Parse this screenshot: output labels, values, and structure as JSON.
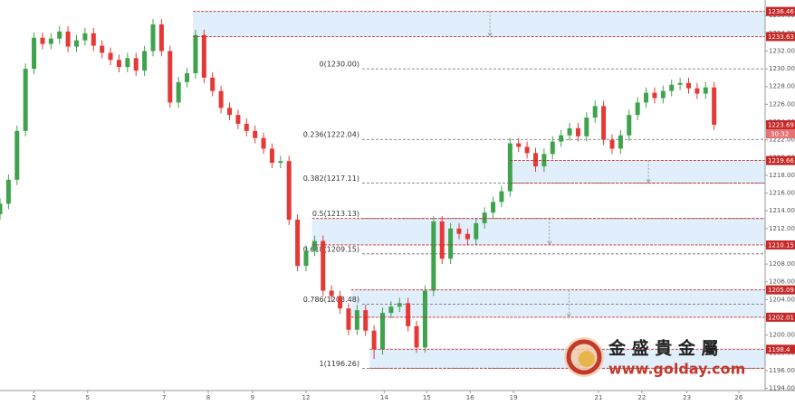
{
  "chart_data": {
    "type": "candlestick",
    "xlim": [
      0,
      90
    ],
    "ylim": [
      1193.75,
      1237.75
    ],
    "xticks": [
      {
        "value": 4.0,
        "label": "2"
      },
      {
        "value": 10.3,
        "label": "5"
      },
      {
        "value": 19.3,
        "label": "7"
      },
      {
        "value": 24.5,
        "label": "8"
      },
      {
        "value": 29.7,
        "label": "9"
      },
      {
        "value": 36.0,
        "label": "12"
      },
      {
        "value": 45.2,
        "label": "14"
      },
      {
        "value": 50.2,
        "label": "15"
      },
      {
        "value": 55.3,
        "label": "16"
      },
      {
        "value": 60.4,
        "label": "19"
      },
      {
        "value": 70.4,
        "label": "21"
      },
      {
        "value": 75.5,
        "label": "22"
      },
      {
        "value": 80.8,
        "label": "23"
      },
      {
        "value": 86.9,
        "label": "26"
      }
    ],
    "yticks": [
      {
        "value": 1194,
        "label": "1194.00"
      },
      {
        "value": 1196,
        "label": "1196.00"
      },
      {
        "value": 1198,
        "label": "1198.00"
      },
      {
        "value": 1200,
        "label": "1200.00"
      },
      {
        "value": 1202,
        "label": "1202.00"
      },
      {
        "value": 1204,
        "label": "1204.00"
      },
      {
        "value": 1206,
        "label": "1206.00"
      },
      {
        "value": 1208,
        "label": "1208.00"
      },
      {
        "value": 1210,
        "label": "1210.00"
      },
      {
        "value": 1212,
        "label": "1212.00"
      },
      {
        "value": 1214,
        "label": "1214.00"
      },
      {
        "value": 1216,
        "label": "1216.00"
      },
      {
        "value": 1218,
        "label": "1218.00"
      },
      {
        "value": 1220,
        "label": "1220.00"
      },
      {
        "value": 1222,
        "label": "1222.00"
      },
      {
        "value": 1224,
        "label": "1224.00"
      },
      {
        "value": 1226,
        "label": "1226.00"
      },
      {
        "value": 1228,
        "label": "1228.00"
      },
      {
        "value": 1230,
        "label": "1230.00"
      },
      {
        "value": 1232,
        "label": "1232.00"
      },
      {
        "value": 1234,
        "label": "1234.00"
      },
      {
        "value": 1236,
        "label": "1236.00"
      }
    ],
    "up_color": "#3fa34d",
    "down_color": "#e53935",
    "open": [
      1213.6,
      1214.8,
      1217.5,
      1223,
      1230,
      1233.5,
      1232.8,
      1233.4,
      1234.2,
      1232.5,
      1233.2,
      1234,
      1232.6,
      1231.8,
      1231,
      1230.2,
      1231.2,
      1229.8,
      1232,
      1235,
      1232,
      1226.2,
      1228.5,
      1229.5,
      1233.8,
      1229,
      1227.5,
      1225.6,
      1224.8,
      1223.8,
      1223,
      1222.2,
      1221,
      1219.4,
      1219.6,
      1213,
      1207.8,
      1209.5,
      1210.6,
      1205,
      1204.4,
      1203,
      1200.6,
      1202.8,
      1200.5,
      1198.4,
      1202.5,
      1203.2,
      1203.6,
      1201,
      1198.6,
      1205,
      1212.8,
      1208.6,
      1212,
      1211.4,
      1210.8,
      1212.6,
      1213.8,
      1215,
      1216.2,
      1221.6,
      1221.2,
      1220.5,
      1219,
      1220.4,
      1221.8,
      1222.5,
      1223.3,
      1222.4,
      1224.5,
      1225.8,
      1222,
      1221,
      1222.5,
      1224.8,
      1226.2,
      1227.3,
      1226.7,
      1227.5,
      1228.2,
      1228.4,
      1227.8,
      1227.2,
      1227.9
    ],
    "high": [
      1215.4,
      1218.1,
      1223.6,
      1230.6,
      1234.1,
      1234.1,
      1234.0,
      1234.8,
      1234.8,
      1233.8,
      1234.6,
      1234.6,
      1233.2,
      1232.4,
      1231.6,
      1231.8,
      1231.8,
      1232.6,
      1235.6,
      1235.6,
      1232.6,
      1229.1,
      1230.1,
      1234.4,
      1234.4,
      1229.6,
      1228.1,
      1226.2,
      1225.4,
      1224.4,
      1223.6,
      1222.8,
      1221.6,
      1220.2,
      1220.2,
      1213.6,
      1210.1,
      1211.2,
      1211.2,
      1205.6,
      1205.0,
      1203.6,
      1203.4,
      1203.4,
      1201.1,
      1203.1,
      1203.8,
      1204.2,
      1204.2,
      1201.6,
      1205.6,
      1213.4,
      1213.4,
      1212.6,
      1212.6,
      1212.0,
      1213.2,
      1214.4,
      1215.6,
      1216.8,
      1222.2,
      1222.2,
      1221.8,
      1221.1,
      1221.0,
      1222.4,
      1223.1,
      1223.9,
      1223.9,
      1225.1,
      1226.4,
      1226.4,
      1222.6,
      1223.1,
      1225.4,
      1226.8,
      1227.9,
      1227.9,
      1228.1,
      1228.8,
      1229.0,
      1229.0,
      1228.4,
      1228.5,
      1228.5
    ],
    "low": [
      1213.0,
      1214.2,
      1216.9,
      1222.4,
      1229.4,
      1232.2,
      1232.2,
      1232.8,
      1231.9,
      1231.9,
      1232.6,
      1232.0,
      1231.2,
      1230.4,
      1229.6,
      1229.6,
      1229.2,
      1229.2,
      1231.4,
      1231.4,
      1225.6,
      1225.6,
      1227.9,
      1228.9,
      1228.4,
      1226.9,
      1225.0,
      1224.2,
      1223.2,
      1222.4,
      1221.6,
      1220.4,
      1218.8,
      1218.8,
      1212.4,
      1207.2,
      1207.2,
      1208.9,
      1204.4,
      1203.8,
      1202.4,
      1200.0,
      1200.0,
      1199.9,
      1197.3,
      1197.8,
      1201.9,
      1202.6,
      1200.4,
      1198.0,
      1198.0,
      1204.4,
      1208.0,
      1208.0,
      1210.8,
      1210.2,
      1210.2,
      1212.0,
      1213.2,
      1214.4,
      1215.6,
      1220.6,
      1219.9,
      1218.4,
      1218.4,
      1219.8,
      1221.2,
      1221.9,
      1221.8,
      1221.8,
      1223.9,
      1221.4,
      1220.4,
      1220.4,
      1221.9,
      1224.2,
      1225.6,
      1226.1,
      1226.1,
      1226.9,
      1227.6,
      1227.2,
      1226.6,
      1226.6,
      1223.1
    ],
    "close": [
      1214.8,
      1217.5,
      1223,
      1230,
      1233.5,
      1232.8,
      1233.4,
      1234.2,
      1232.5,
      1233.2,
      1234,
      1232.6,
      1231.8,
      1231,
      1230.2,
      1231.2,
      1229.8,
      1232,
      1235,
      1232,
      1226.2,
      1228.5,
      1229.5,
      1233.8,
      1229,
      1227.5,
      1225.6,
      1224.8,
      1223.8,
      1223,
      1222.2,
      1221,
      1219.4,
      1219.6,
      1213,
      1207.8,
      1209.5,
      1210.6,
      1205,
      1204.4,
      1203,
      1200.6,
      1202.8,
      1200.5,
      1198.4,
      1202.5,
      1203.2,
      1203.6,
      1201,
      1198.6,
      1205,
      1212.8,
      1208.6,
      1212,
      1211.4,
      1210.8,
      1212.6,
      1213.8,
      1215,
      1216.2,
      1221.6,
      1221.2,
      1220.5,
      1219,
      1220.4,
      1221.8,
      1222.5,
      1223.3,
      1222.4,
      1224.5,
      1225.8,
      1222,
      1221,
      1222.5,
      1224.8,
      1226.2,
      1227.3,
      1226.7,
      1227.5,
      1228.2,
      1228.4,
      1227.8,
      1227.2,
      1227.9,
      1223.7
    ],
    "fib_start": 42.6,
    "fib_levels": [
      {
        "value": 1230.0,
        "label": "0(1230.00)"
      },
      {
        "value": 1222.04,
        "label": "0.236(1222.04)"
      },
      {
        "value": 1217.11,
        "label": "0.382(1217.11)"
      },
      {
        "value": 1213.13,
        "label": "0.5(1213.13)"
      },
      {
        "value": 1209.15,
        "label": "0.618(1209.15)"
      },
      {
        "value": 1203.48,
        "label": "0.786(1203.48)"
      },
      {
        "value": 1196.26,
        "label": "1(1196.26)"
      }
    ],
    "zones": [
      {
        "start": 22.7,
        "top": 1236.46,
        "bottom": 1233.63,
        "tagged": [
          "top",
          "bottom"
        ]
      },
      {
        "start": 60.0,
        "top": 1219.66,
        "bottom": 1217.11,
        "tagged": [
          "top"
        ]
      },
      {
        "start": 36.7,
        "top": 1213.13,
        "bottom": 1210.15,
        "tagged": [
          "bottom"
        ]
      },
      {
        "start": 41.3,
        "top": 1205.09,
        "bottom": 1202.01,
        "tagged": [
          "top",
          "bottom"
        ]
      },
      {
        "start": 43.5,
        "top": 1198.4,
        "bottom": 1196.26,
        "tagged": [
          "top"
        ]
      }
    ],
    "last_price": 1223.69,
    "countdown": "30:32",
    "watermark": {
      "name": "金 盛 貴 金 屬",
      "url": "www.golday.com"
    }
  }
}
